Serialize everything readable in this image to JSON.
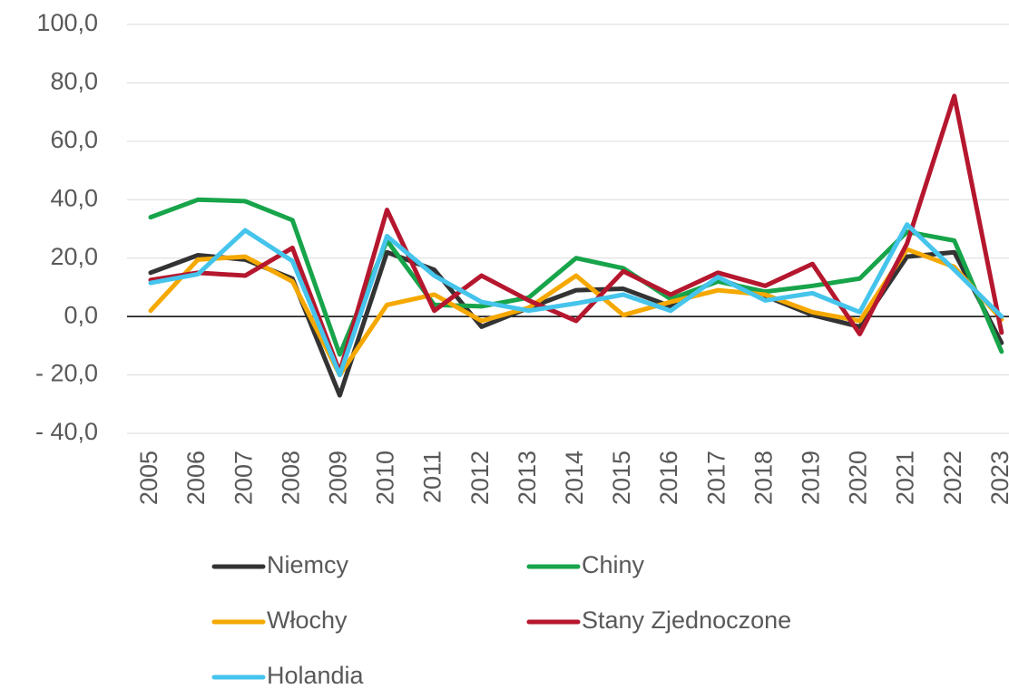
{
  "chart_data": {
    "type": "line",
    "categories": [
      "2005",
      "2006",
      "2007",
      "2008",
      "2009",
      "2010",
      "2011",
      "2012",
      "2013",
      "2014",
      "2015",
      "2016",
      "2017",
      "2018",
      "2019",
      "2020",
      "2021",
      "2022",
      "2023"
    ],
    "series": [
      {
        "name": "Niemcy",
        "color": "#333333",
        "values": [
          15,
          21,
          19.5,
          13,
          -27,
          22,
          16,
          -3.5,
          3,
          9,
          9.5,
          3.5,
          13,
          7,
          0.5,
          -3.5,
          20.5,
          22,
          -9
        ]
      },
      {
        "name": "Chiny",
        "color": "#17a44a",
        "values": [
          34,
          40,
          39.5,
          33,
          -13,
          26,
          4,
          3.5,
          6.5,
          20,
          16.5,
          6,
          12,
          8.5,
          10.5,
          13,
          29,
          26,
          -12
        ]
      },
      {
        "name": "Włochy",
        "color": "#f5a800",
        "values": [
          2,
          19.5,
          20.5,
          12,
          -20,
          4,
          7.5,
          -1.5,
          3,
          14,
          0.5,
          5,
          9,
          7.5,
          1.5,
          -1.5,
          23,
          17,
          -1
        ]
      },
      {
        "name": "Stany Zjednoczone",
        "color": "#b5172e",
        "values": [
          12.5,
          15,
          14,
          23.5,
          -19,
          36.5,
          2,
          14,
          5.5,
          -1.5,
          15.5,
          7.5,
          15,
          10.5,
          18,
          -6,
          25,
          75.5,
          -5.5
        ]
      },
      {
        "name": "Holandia",
        "color": "#45c4ec",
        "values": [
          11.5,
          14.5,
          29.5,
          19,
          -20,
          27.5,
          14,
          5,
          2,
          4.5,
          7.5,
          2,
          13.5,
          5.5,
          8,
          1.5,
          31.5,
          16,
          0
        ]
      }
    ],
    "ylim": [
      -40,
      100
    ],
    "yticks": [
      {
        "value": -40,
        "label": "- 40,0"
      },
      {
        "value": -20,
        "label": "- 20,0"
      },
      {
        "value": 0,
        "label": "0,0"
      },
      {
        "value": 20,
        "label": "20,0"
      },
      {
        "value": 40,
        "label": "40,0"
      },
      {
        "value": 60,
        "label": "60,0"
      },
      {
        "value": 80,
        "label": "80,0"
      },
      {
        "value": 100,
        "label": "100,0"
      }
    ],
    "grid": true,
    "legend": "bottom"
  }
}
